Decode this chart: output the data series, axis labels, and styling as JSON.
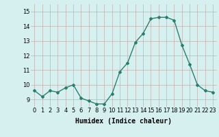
{
  "x": [
    0,
    1,
    2,
    3,
    4,
    5,
    6,
    7,
    8,
    9,
    10,
    11,
    12,
    13,
    14,
    15,
    16,
    17,
    18,
    19,
    20,
    21,
    22,
    23
  ],
  "y": [
    9.6,
    9.2,
    9.6,
    9.5,
    9.8,
    10.0,
    9.1,
    8.9,
    8.7,
    8.7,
    9.4,
    10.9,
    11.5,
    12.9,
    13.5,
    14.5,
    14.6,
    14.6,
    14.4,
    12.7,
    11.4,
    10.0,
    9.6,
    9.5
  ],
  "line_color": "#2d7d6e",
  "bg_color": "#d6f0f0",
  "grid_color": "#c0b0b0",
  "xlabel": "Humidex (Indice chaleur)",
  "ylim": [
    8.5,
    15.5
  ],
  "xlim": [
    -0.5,
    23.5
  ],
  "yticks": [
    9,
    10,
    11,
    12,
    13,
    14,
    15
  ],
  "xticks": [
    0,
    1,
    2,
    3,
    4,
    5,
    6,
    7,
    8,
    9,
    10,
    11,
    12,
    13,
    14,
    15,
    16,
    17,
    18,
    19,
    20,
    21,
    22,
    23
  ],
  "marker": "D",
  "markersize": 2.0,
  "linewidth": 1.0,
  "xlabel_fontsize": 7,
  "tick_fontsize": 6
}
